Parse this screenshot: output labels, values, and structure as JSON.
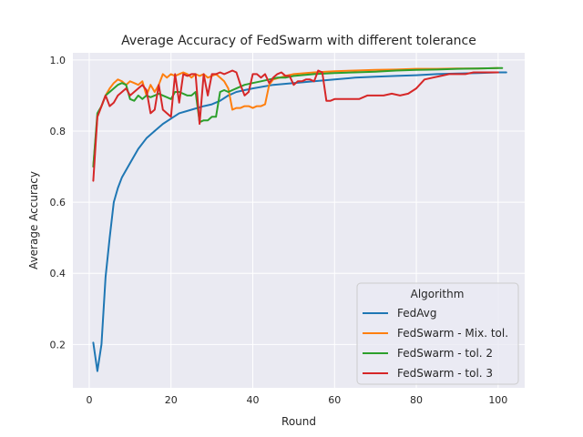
{
  "chart_data": {
    "type": "line",
    "title": "Average Accuracy of FedSwarm with different tolerance",
    "xlabel": "Round",
    "ylabel": "Average Accuracy",
    "xlim": [
      -4,
      106.5
    ],
    "ylim": [
      0.078,
      1.02
    ],
    "xticks": [
      0,
      20,
      40,
      60,
      80,
      100
    ],
    "yticks": [
      0.2,
      0.4,
      0.6,
      0.8,
      1.0
    ],
    "xtick_labels": [
      "0",
      "20",
      "40",
      "60",
      "80",
      "100"
    ],
    "ytick_labels": [
      "0.2",
      "0.4",
      "0.6",
      "0.8",
      "1.0"
    ],
    "grid": true,
    "legend": {
      "title": "Algorithm",
      "placement": "lower-right"
    },
    "series": [
      {
        "name": "FedAvg",
        "color": "#1f77b4",
        "points": [
          [
            1,
            0.205
          ],
          [
            2,
            0.125
          ],
          [
            3,
            0.2
          ],
          [
            4,
            0.39
          ],
          [
            5,
            0.5
          ],
          [
            6,
            0.6
          ],
          [
            7,
            0.64
          ],
          [
            8,
            0.67
          ],
          [
            10,
            0.71
          ],
          [
            12,
            0.75
          ],
          [
            14,
            0.78
          ],
          [
            16,
            0.8
          ],
          [
            18,
            0.82
          ],
          [
            20,
            0.835
          ],
          [
            22,
            0.85
          ],
          [
            25,
            0.86
          ],
          [
            28,
            0.87
          ],
          [
            30,
            0.875
          ],
          [
            32,
            0.885
          ],
          [
            34,
            0.9
          ],
          [
            36,
            0.91
          ],
          [
            38,
            0.915
          ],
          [
            40,
            0.92
          ],
          [
            45,
            0.93
          ],
          [
            50,
            0.935
          ],
          [
            55,
            0.94
          ],
          [
            60,
            0.945
          ],
          [
            65,
            0.95
          ],
          [
            70,
            0.953
          ],
          [
            75,
            0.955
          ],
          [
            80,
            0.957
          ],
          [
            85,
            0.96
          ],
          [
            90,
            0.962
          ],
          [
            95,
            0.963
          ],
          [
            100,
            0.965
          ],
          [
            102,
            0.965
          ]
        ]
      },
      {
        "name": "FedSwarm - Mix. tol.",
        "color": "#ff7f0e",
        "points": [
          [
            1,
            0.7
          ],
          [
            2,
            0.84
          ],
          [
            3,
            0.87
          ],
          [
            4,
            0.9
          ],
          [
            5,
            0.92
          ],
          [
            6,
            0.935
          ],
          [
            7,
            0.945
          ],
          [
            8,
            0.94
          ],
          [
            9,
            0.93
          ],
          [
            10,
            0.94
          ],
          [
            11,
            0.935
          ],
          [
            12,
            0.93
          ],
          [
            13,
            0.94
          ],
          [
            14,
            0.9
          ],
          [
            15,
            0.93
          ],
          [
            16,
            0.91
          ],
          [
            17,
            0.93
          ],
          [
            18,
            0.96
          ],
          [
            19,
            0.95
          ],
          [
            20,
            0.96
          ],
          [
            21,
            0.955
          ],
          [
            22,
            0.96
          ],
          [
            23,
            0.965
          ],
          [
            24,
            0.96
          ],
          [
            25,
            0.95
          ],
          [
            26,
            0.96
          ],
          [
            27,
            0.955
          ],
          [
            28,
            0.96
          ],
          [
            29,
            0.95
          ],
          [
            30,
            0.955
          ],
          [
            31,
            0.96
          ],
          [
            32,
            0.95
          ],
          [
            33,
            0.94
          ],
          [
            34,
            0.92
          ],
          [
            35,
            0.86
          ],
          [
            36,
            0.865
          ],
          [
            37,
            0.865
          ],
          [
            38,
            0.87
          ],
          [
            39,
            0.87
          ],
          [
            40,
            0.865
          ],
          [
            41,
            0.87
          ],
          [
            42,
            0.87
          ],
          [
            43,
            0.875
          ],
          [
            44,
            0.93
          ],
          [
            45,
            0.945
          ],
          [
            48,
            0.955
          ],
          [
            50,
            0.96
          ],
          [
            55,
            0.965
          ],
          [
            60,
            0.968
          ],
          [
            65,
            0.97
          ],
          [
            70,
            0.972
          ],
          [
            75,
            0.973
          ],
          [
            80,
            0.975
          ],
          [
            85,
            0.975
          ],
          [
            90,
            0.976
          ],
          [
            95,
            0.976
          ],
          [
            100,
            0.977
          ]
        ]
      },
      {
        "name": "FedSwarm - tol. 2",
        "color": "#2ca02c",
        "points": [
          [
            1,
            0.7
          ],
          [
            2,
            0.85
          ],
          [
            3,
            0.87
          ],
          [
            4,
            0.9
          ],
          [
            5,
            0.91
          ],
          [
            6,
            0.92
          ],
          [
            7,
            0.93
          ],
          [
            8,
            0.935
          ],
          [
            9,
            0.93
          ],
          [
            10,
            0.89
          ],
          [
            11,
            0.885
          ],
          [
            12,
            0.9
          ],
          [
            13,
            0.89
          ],
          [
            14,
            0.9
          ],
          [
            15,
            0.895
          ],
          [
            16,
            0.9
          ],
          [
            17,
            0.905
          ],
          [
            18,
            0.9
          ],
          [
            19,
            0.895
          ],
          [
            20,
            0.89
          ],
          [
            21,
            0.91
          ],
          [
            22,
            0.91
          ],
          [
            23,
            0.905
          ],
          [
            24,
            0.9
          ],
          [
            25,
            0.9
          ],
          [
            26,
            0.91
          ],
          [
            27,
            0.825
          ],
          [
            28,
            0.83
          ],
          [
            29,
            0.83
          ],
          [
            30,
            0.84
          ],
          [
            31,
            0.84
          ],
          [
            32,
            0.91
          ],
          [
            33,
            0.915
          ],
          [
            34,
            0.91
          ],
          [
            35,
            0.915
          ],
          [
            36,
            0.92
          ],
          [
            38,
            0.93
          ],
          [
            40,
            0.935
          ],
          [
            42,
            0.94
          ],
          [
            44,
            0.945
          ],
          [
            46,
            0.95
          ],
          [
            48,
            0.95
          ],
          [
            50,
            0.955
          ],
          [
            55,
            0.96
          ],
          [
            60,
            0.963
          ],
          [
            65,
            0.965
          ],
          [
            70,
            0.967
          ],
          [
            75,
            0.97
          ],
          [
            80,
            0.972
          ],
          [
            85,
            0.973
          ],
          [
            90,
            0.975
          ],
          [
            95,
            0.976
          ],
          [
            100,
            0.977
          ],
          [
            101,
            0.977
          ]
        ]
      },
      {
        "name": "FedSwarm - tol. 3",
        "color": "#d62728",
        "points": [
          [
            1,
            0.66
          ],
          [
            2,
            0.84
          ],
          [
            3,
            0.87
          ],
          [
            4,
            0.9
          ],
          [
            5,
            0.87
          ],
          [
            6,
            0.88
          ],
          [
            7,
            0.9
          ],
          [
            8,
            0.91
          ],
          [
            9,
            0.92
          ],
          [
            10,
            0.9
          ],
          [
            11,
            0.91
          ],
          [
            12,
            0.92
          ],
          [
            13,
            0.93
          ],
          [
            14,
            0.915
          ],
          [
            15,
            0.85
          ],
          [
            16,
            0.86
          ],
          [
            17,
            0.93
          ],
          [
            18,
            0.86
          ],
          [
            19,
            0.85
          ],
          [
            20,
            0.84
          ],
          [
            21,
            0.96
          ],
          [
            22,
            0.88
          ],
          [
            23,
            0.96
          ],
          [
            24,
            0.955
          ],
          [
            25,
            0.96
          ],
          [
            26,
            0.96
          ],
          [
            27,
            0.82
          ],
          [
            28,
            0.96
          ],
          [
            29,
            0.9
          ],
          [
            30,
            0.96
          ],
          [
            31,
            0.96
          ],
          [
            32,
            0.965
          ],
          [
            33,
            0.96
          ],
          [
            34,
            0.965
          ],
          [
            35,
            0.97
          ],
          [
            36,
            0.965
          ],
          [
            37,
            0.93
          ],
          [
            38,
            0.9
          ],
          [
            39,
            0.91
          ],
          [
            40,
            0.96
          ],
          [
            41,
            0.96
          ],
          [
            42,
            0.95
          ],
          [
            43,
            0.96
          ],
          [
            44,
            0.935
          ],
          [
            45,
            0.95
          ],
          [
            46,
            0.96
          ],
          [
            47,
            0.965
          ],
          [
            48,
            0.955
          ],
          [
            49,
            0.955
          ],
          [
            50,
            0.93
          ],
          [
            51,
            0.94
          ],
          [
            52,
            0.94
          ],
          [
            53,
            0.945
          ],
          [
            54,
            0.945
          ],
          [
            55,
            0.94
          ],
          [
            56,
            0.97
          ],
          [
            57,
            0.965
          ],
          [
            58,
            0.885
          ],
          [
            59,
            0.885
          ],
          [
            60,
            0.89
          ],
          [
            62,
            0.89
          ],
          [
            64,
            0.89
          ],
          [
            66,
            0.89
          ],
          [
            68,
            0.9
          ],
          [
            70,
            0.9
          ],
          [
            72,
            0.9
          ],
          [
            74,
            0.905
          ],
          [
            76,
            0.9
          ],
          [
            78,
            0.905
          ],
          [
            80,
            0.92
          ],
          [
            82,
            0.945
          ],
          [
            84,
            0.95
          ],
          [
            86,
            0.955
          ],
          [
            88,
            0.96
          ],
          [
            90,
            0.96
          ],
          [
            92,
            0.96
          ],
          [
            94,
            0.965
          ],
          [
            96,
            0.965
          ],
          [
            98,
            0.965
          ],
          [
            100,
            0.965
          ]
        ]
      }
    ]
  }
}
